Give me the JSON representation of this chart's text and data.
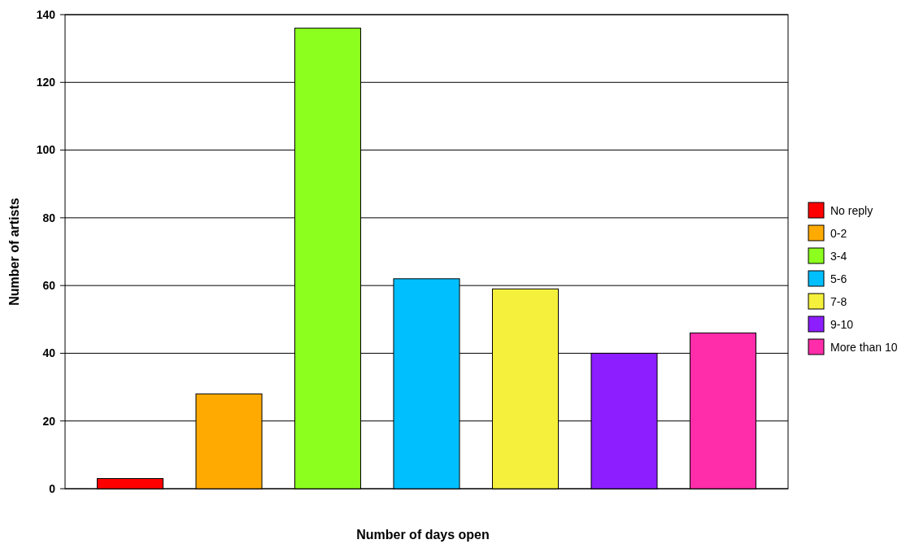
{
  "chart_data": {
    "type": "bar",
    "xlabel": "Number of days open",
    "ylabel": "Number of artists",
    "categories": [
      null,
      null,
      null,
      null,
      null,
      null,
      null
    ],
    "series": [
      {
        "name": "No reply",
        "color": "#ff0000",
        "values": [
          3,
          null,
          null,
          null,
          null,
          null,
          null
        ]
      },
      {
        "name": "0-2",
        "color": "#ffaa00",
        "values": [
          null,
          28,
          null,
          null,
          null,
          null,
          null
        ]
      },
      {
        "name": "3-4",
        "color": "#8cff1e",
        "values": [
          null,
          null,
          136,
          null,
          null,
          null,
          null
        ]
      },
      {
        "name": "5-6",
        "color": "#00bfff",
        "values": [
          null,
          null,
          null,
          62,
          null,
          null,
          null
        ]
      },
      {
        "name": "7-8",
        "color": "#f5f03c",
        "values": [
          null,
          null,
          null,
          null,
          59,
          null,
          null
        ]
      },
      {
        "name": "9-10",
        "color": "#8c1eff",
        "values": [
          null,
          null,
          null,
          null,
          null,
          40,
          null
        ]
      },
      {
        "name": "More than 10",
        "color": "#ff2daa",
        "values": [
          null,
          null,
          null,
          null,
          null,
          null,
          46
        ]
      }
    ],
    "ylim": [
      0,
      140
    ],
    "yticks": [
      0,
      20,
      40,
      60,
      80,
      100,
      120,
      140
    ],
    "grid": "y",
    "legend": "right"
  }
}
